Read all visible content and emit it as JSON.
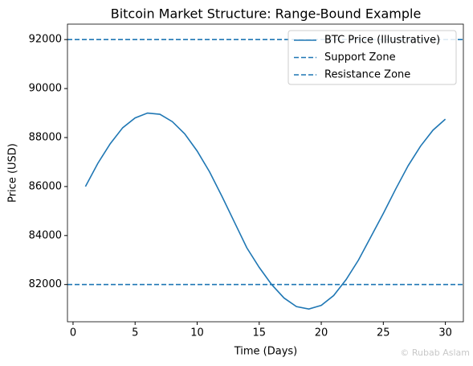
{
  "chart_data": {
    "type": "line",
    "title": "Bitcoin Market Structure: Range-Bound Example",
    "x_label": "Time (Days)",
    "y_label": "Price (USD)",
    "x": [
      1,
      2,
      3,
      4,
      5,
      6,
      7,
      8,
      9,
      10,
      11,
      12,
      13,
      14,
      15,
      16,
      17,
      18,
      19,
      20,
      21,
      22,
      23,
      24,
      25,
      26,
      27,
      28,
      29,
      30
    ],
    "series": [
      {
        "name": "BTC Price (Illustrative)",
        "color": "#1f77b4",
        "values": [
          86000,
          86950,
          87750,
          88400,
          88800,
          89000,
          88950,
          88650,
          88150,
          87450,
          86600,
          85600,
          84550,
          83500,
          82700,
          82000,
          81450,
          81100,
          81000,
          81150,
          81550,
          82200,
          83000,
          83950,
          84900,
          85900,
          86850,
          87650,
          88300,
          88750
        ]
      },
      {
        "name": "Support Zone",
        "color": "#1f77b4",
        "value": 82000,
        "style": "dashed"
      },
      {
        "name": "Resistance Zone",
        "color": "#1f77b4",
        "value": 92000,
        "style": "dashed"
      }
    ],
    "xlim": [
      -0.45,
      31.45
    ],
    "ylim": [
      80480,
      92630
    ],
    "xticks": [
      0,
      5,
      10,
      15,
      20,
      25,
      30
    ],
    "yticks": [
      82000,
      84000,
      86000,
      88000,
      90000,
      92000
    ],
    "legend": "upper right",
    "watermark": "© Rubab Aslam"
  }
}
